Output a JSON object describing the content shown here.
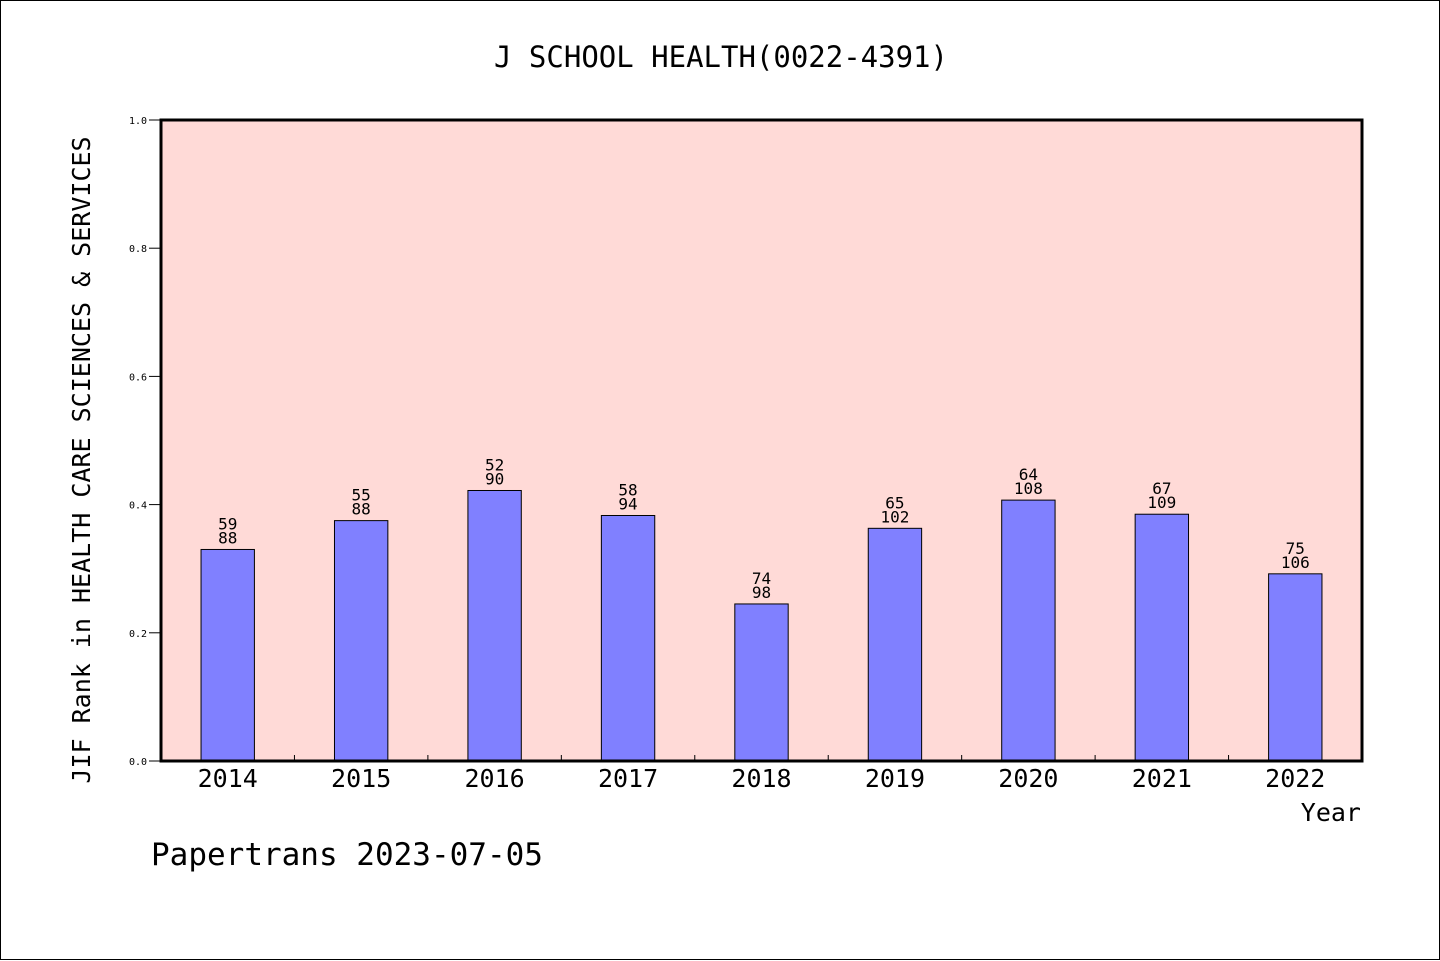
{
  "chart_data": {
    "type": "bar",
    "title": "J SCHOOL HEALTH(0022-4391)",
    "xlabel": "Year",
    "ylabel": "JIF Rank in HEALTH CARE SCIENCES & SERVICES",
    "footer": "Papertrans 2023-07-05",
    "categories": [
      "2014",
      "2015",
      "2016",
      "2017",
      "2018",
      "2019",
      "2020",
      "2021",
      "2022"
    ],
    "values": [
      0.33,
      0.375,
      0.422,
      0.383,
      0.245,
      0.363,
      0.407,
      0.385,
      0.292
    ],
    "rank": [
      "59",
      "55",
      "52",
      "58",
      "74",
      "65",
      "64",
      "67",
      "75"
    ],
    "total": [
      "88",
      "88",
      "90",
      "94",
      "98",
      "102",
      "108",
      "109",
      "106"
    ],
    "ylim": [
      0,
      1.0
    ],
    "yticks": [
      "0.0",
      "0.2",
      "0.4",
      "0.6",
      "0.8",
      "1.0"
    ],
    "grid": false,
    "colors": {
      "bar": "#8080ff",
      "plot_background": "#ffdad7",
      "axis": "#000000"
    }
  }
}
